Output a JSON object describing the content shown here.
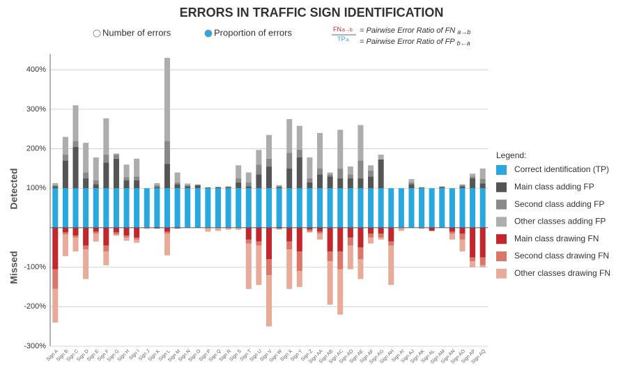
{
  "chart_data": {
    "type": "bar",
    "title": "ERRORS IN TRAFFIC SIGN IDENTIFICATION",
    "view_options": [
      "Number of errors",
      "Proportion of errors"
    ],
    "selected_view": 1,
    "formula": {
      "numerator": "FN",
      "numerator_sub": "a→b",
      "denominator": "TP",
      "denominator_sub": "a",
      "lines": [
        {
          "text": "= Pairwise Error Ratio of FN",
          "sub": "a→b"
        },
        {
          "text": "= Pairwise Error Ratio of FP",
          "sub": "b←a"
        }
      ]
    },
    "section_labels": [
      "Detected",
      "Missed"
    ],
    "legend_title": "Legend:",
    "categories": [
      "Sign A",
      "Sign B",
      "Sign C",
      "Sign D",
      "Sign E",
      "Sign F",
      "Sign G",
      "Sign H",
      "Sign I",
      "Sign J",
      "Sign K",
      "Sign L",
      "Sign M",
      "Sign N",
      "Sign O",
      "Sign P",
      "Sign Q",
      "Sign R",
      "Sign S",
      "Sign T",
      "Sign U",
      "Sign V",
      "Sign W",
      "Sign X",
      "Sign Y",
      "Sign Z",
      "Sign AA",
      "Sign AB",
      "Sign AC",
      "Sign AD",
      "Sign AE",
      "Sign AF",
      "Sign AG",
      "Sign AH",
      "Sign AI",
      "Sign AJ",
      "Sign AK",
      "Sign AL",
      "Sign AM",
      "Sign AN",
      "Sign AO",
      "Sign AP",
      "Sign AQ"
    ],
    "series": [
      {
        "name": "Correct identification (TP)",
        "color": "#29a8e0",
        "values": [
          100,
          100,
          100,
          100,
          100,
          100,
          100,
          100,
          100,
          100,
          100,
          100,
          100,
          100,
          100,
          100,
          100,
          100,
          100,
          100,
          100,
          100,
          100,
          100,
          100,
          100,
          100,
          100,
          100,
          100,
          100,
          100,
          100,
          100,
          100,
          100,
          100,
          100,
          100,
          100,
          100,
          100,
          100
        ]
      },
      {
        "name": "Main class adding FP",
        "color": "#555555",
        "values": [
          5,
          70,
          105,
          25,
          10,
          65,
          75,
          20,
          20,
          0,
          3,
          62,
          10,
          5,
          8,
          2,
          3,
          3,
          15,
          5,
          35,
          55,
          3,
          50,
          78,
          15,
          35,
          30,
          25,
          25,
          25,
          30,
          73,
          0,
          0,
          10,
          2,
          0,
          3,
          0,
          5,
          25,
          12
        ]
      },
      {
        "name": "Second class adding FP",
        "color": "#898989",
        "values": [
          3,
          15,
          15,
          15,
          10,
          20,
          10,
          8,
          10,
          0,
          5,
          58,
          5,
          3,
          0,
          0,
          0,
          0,
          10,
          10,
          25,
          20,
          2,
          40,
          20,
          10,
          15,
          5,
          25,
          10,
          45,
          15,
          0,
          0,
          0,
          5,
          0,
          0,
          0,
          0,
          3,
          5,
          12
        ]
      },
      {
        "name": "Other classes adding FP",
        "color": "#adadad",
        "values": [
          5,
          45,
          90,
          75,
          58,
          92,
          3,
          32,
          45,
          0,
          5,
          210,
          25,
          4,
          2,
          0,
          0,
          2,
          33,
          25,
          37,
          60,
          3,
          85,
          60,
          53,
          90,
          5,
          98,
          20,
          90,
          13,
          12,
          0,
          0,
          8,
          0,
          0,
          2,
          0,
          2,
          7,
          26
        ]
      },
      {
        "name": "Main class drawing FN",
        "color": "#c1272d",
        "values": [
          -105,
          -12,
          -20,
          -45,
          -10,
          -45,
          -12,
          -20,
          -25,
          0,
          -2,
          -10,
          -2,
          0,
          0,
          0,
          0,
          0,
          0,
          -30,
          -35,
          -80,
          -2,
          -35,
          -60,
          -5,
          -10,
          -60,
          -60,
          -25,
          -50,
          -15,
          -15,
          -35,
          0,
          0,
          0,
          -8,
          0,
          -10,
          -15,
          -75,
          -75
        ]
      },
      {
        "name": "Second class drawing FN",
        "color": "#d9776a",
        "values": [
          -50,
          -5,
          -5,
          -10,
          -5,
          -15,
          -5,
          -5,
          -5,
          0,
          0,
          -5,
          0,
          0,
          0,
          0,
          0,
          0,
          0,
          -10,
          -10,
          -40,
          0,
          -20,
          -50,
          -5,
          -5,
          -25,
          -45,
          -20,
          -30,
          -10,
          -10,
          -10,
          0,
          0,
          0,
          0,
          0,
          -5,
          -15,
          -10,
          -20
        ]
      },
      {
        "name": "Other classes drawing FN",
        "color": "#e9ab99",
        "values": [
          -85,
          -55,
          -35,
          -75,
          -20,
          -35,
          -3,
          -8,
          -8,
          -3,
          0,
          -55,
          0,
          0,
          0,
          -10,
          -8,
          -5,
          -5,
          -115,
          -100,
          -130,
          -3,
          -100,
          -40,
          -2,
          -15,
          -110,
          -115,
          -60,
          -50,
          -15,
          -5,
          -100,
          -8,
          0,
          -3,
          0,
          0,
          -15,
          -30,
          -15,
          -5
        ]
      }
    ],
    "ylim": [
      -300,
      440
    ],
    "yticks": [
      {
        "value": -300,
        "label": "-300%"
      },
      {
        "value": -200,
        "label": "-200%"
      },
      {
        "value": -100,
        "label": "-100%"
      },
      {
        "value": 100,
        "label": "100%"
      },
      {
        "value": 200,
        "label": "200%"
      },
      {
        "value": 300,
        "label": "300%"
      },
      {
        "value": 400,
        "label": "400%"
      }
    ],
    "grid": true
  }
}
